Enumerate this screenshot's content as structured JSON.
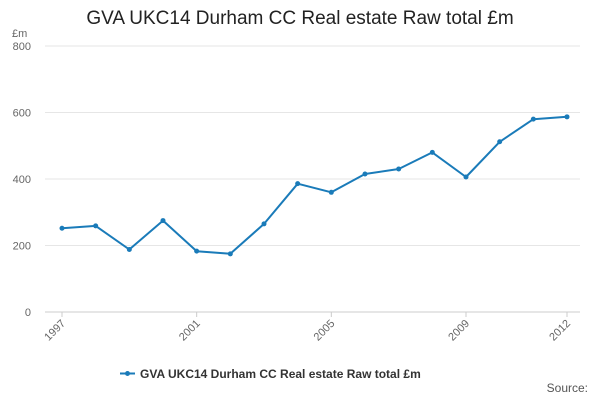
{
  "chart_data": {
    "type": "line",
    "title": "GVA UKC14 Durham CC Real estate Raw total £m",
    "ylabel": "£m",
    "xlabel": "",
    "ylim": [
      0,
      800
    ],
    "yticks": [
      0,
      200,
      400,
      600,
      800
    ],
    "xticks": [
      1997,
      2001,
      2005,
      2009,
      2012
    ],
    "x": [
      1997,
      1998,
      1999,
      2000,
      2001,
      2002,
      2003,
      2004,
      2005,
      2006,
      2007,
      2008,
      2009,
      2010,
      2011,
      2012
    ],
    "series": [
      {
        "name": "GVA UKC14 Durham CC Real estate Raw total £m",
        "color": "#1a7bb9",
        "values": [
          252,
          259,
          188,
          275,
          183,
          175,
          265,
          386,
          360,
          415,
          430,
          480,
          406,
          512,
          580,
          587
        ]
      }
    ],
    "grid": true,
    "legend": "bottom-center"
  },
  "source_label": "Source:"
}
